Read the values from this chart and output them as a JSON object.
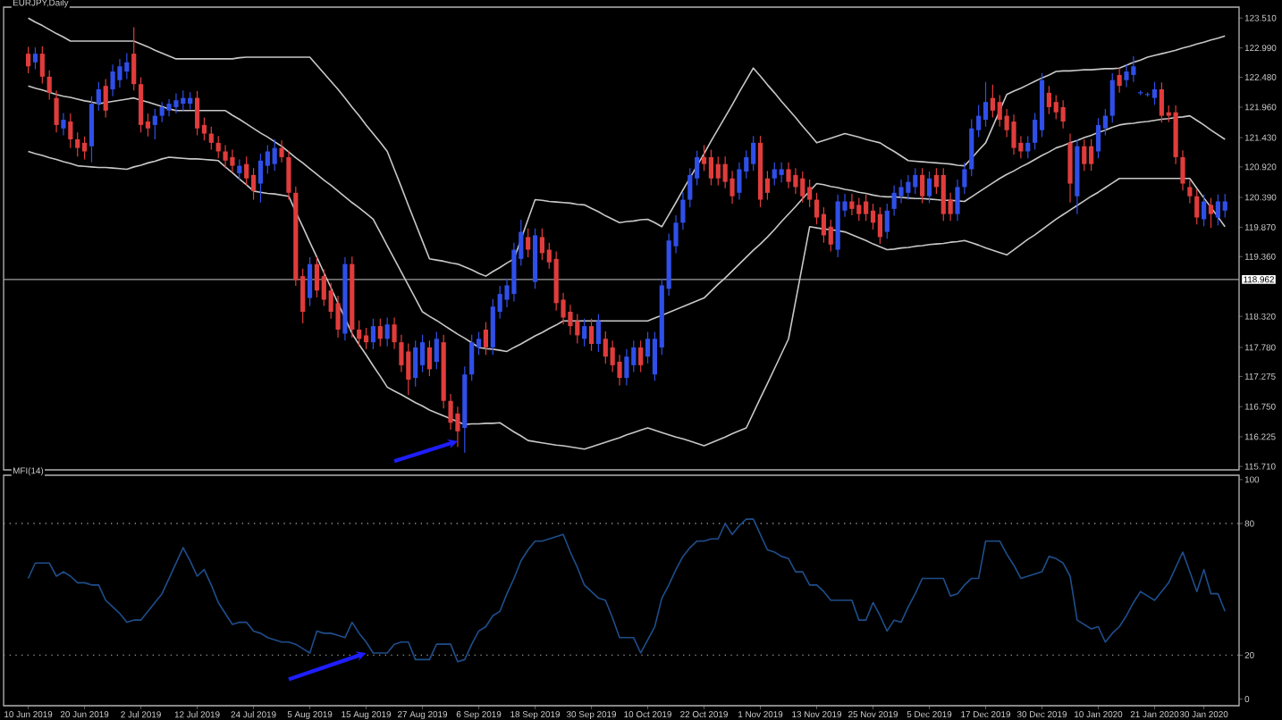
{
  "chart_data": [
    {
      "type": "candlestick",
      "title": "EURJPY,Daily",
      "categories": [
        null,
        null,
        null,
        null,
        null,
        null,
        null,
        null,
        null,
        null,
        null,
        null,
        null,
        null,
        null,
        null,
        null,
        null,
        null,
        null,
        null,
        null,
        null,
        null,
        null,
        null,
        null,
        null,
        null,
        null,
        null,
        null,
        null,
        null,
        null,
        null,
        null,
        null,
        null,
        null,
        null,
        null,
        null,
        null,
        null,
        null,
        null,
        null,
        null,
        null,
        null,
        null,
        null,
        null,
        null,
        null,
        null,
        null,
        null,
        null,
        null,
        null,
        null,
        null,
        null,
        null,
        null,
        null,
        null,
        null,
        null,
        null,
        null,
        null,
        null,
        null,
        null,
        null,
        null,
        null,
        null,
        null,
        null,
        null,
        null,
        null,
        null,
        null,
        null,
        null,
        null,
        null,
        null,
        null,
        null,
        null,
        null,
        null,
        null,
        null,
        null,
        null,
        null,
        null,
        null,
        null,
        null,
        null,
        null,
        null,
        null,
        null,
        null,
        null,
        null,
        null,
        null,
        null,
        null,
        null,
        null,
        null,
        null,
        null,
        null,
        null,
        null,
        null,
        null,
        null,
        null,
        null,
        null,
        null,
        null,
        null,
        null,
        null,
        null,
        null,
        null,
        null,
        null,
        null,
        null,
        null,
        null,
        null,
        null,
        null,
        null,
        null,
        null,
        null,
        null,
        null,
        null,
        null,
        null,
        null,
        null,
        null,
        null,
        null,
        null,
        null,
        null,
        null,
        null,
        null,
        null
      ],
      "ohlc": [
        [
          122.89,
          123.01,
          122.55,
          122.67
        ],
        [
          122.74,
          123.0,
          122.62,
          122.89
        ],
        [
          122.89,
          123.02,
          122.37,
          122.49
        ],
        [
          122.49,
          122.6,
          122.09,
          122.21
        ],
        [
          122.12,
          122.25,
          121.52,
          121.65
        ],
        [
          121.59,
          121.86,
          121.47,
          121.74
        ],
        [
          121.71,
          121.85,
          121.25,
          121.4
        ],
        [
          121.4,
          121.52,
          121.1,
          121.25
        ],
        [
          121.34,
          121.45,
          121.05,
          121.19
        ],
        [
          121.28,
          122.15,
          121.0,
          122.02
        ],
        [
          122.02,
          122.4,
          121.9,
          122.27
        ],
        [
          122.33,
          122.45,
          121.78,
          121.9
        ],
        [
          122.27,
          122.7,
          122.15,
          122.58
        ],
        [
          122.43,
          122.8,
          122.3,
          122.67
        ],
        [
          122.58,
          122.9,
          122.45,
          122.74
        ],
        [
          122.89,
          123.35,
          122.25,
          122.36
        ],
        [
          122.36,
          122.48,
          121.52,
          121.65
        ],
        [
          121.71,
          121.85,
          121.45,
          121.59
        ],
        [
          121.65,
          121.93,
          121.4,
          121.81
        ],
        [
          121.81,
          122.05,
          121.7,
          121.96
        ],
        [
          121.9,
          122.1,
          121.8,
          122.02
        ],
        [
          121.96,
          122.2,
          121.85,
          122.08
        ],
        [
          122.02,
          122.25,
          121.9,
          122.12
        ],
        [
          122.02,
          122.22,
          121.92,
          122.12
        ],
        [
          122.12,
          122.24,
          121.47,
          121.59
        ],
        [
          121.65,
          121.78,
          121.38,
          121.5
        ],
        [
          121.5,
          121.62,
          121.22,
          121.34
        ],
        [
          121.34,
          121.46,
          121.07,
          121.19
        ],
        [
          121.19,
          121.3,
          120.9,
          121.03
        ],
        [
          121.09,
          121.22,
          120.82,
          120.94
        ],
        [
          120.81,
          121.05,
          120.7,
          120.94
        ],
        [
          120.97,
          121.1,
          120.6,
          120.72
        ],
        [
          120.78,
          120.9,
          120.35,
          120.5
        ],
        [
          120.63,
          121.15,
          120.3,
          121.03
        ],
        [
          120.94,
          121.3,
          120.8,
          121.19
        ],
        [
          120.97,
          121.4,
          120.85,
          121.25
        ],
        [
          121.25,
          121.38,
          121.0,
          121.09
        ],
        [
          121.09,
          121.2,
          120.35,
          120.47
        ],
        [
          120.47,
          120.58,
          118.85,
          118.95
        ],
        [
          119.02,
          119.15,
          118.2,
          118.4
        ],
        [
          118.64,
          119.35,
          118.5,
          119.23
        ],
        [
          119.23,
          119.35,
          118.65,
          118.77
        ],
        [
          119.02,
          119.14,
          118.5,
          118.61
        ],
        [
          118.77,
          118.9,
          118.28,
          118.4
        ],
        [
          118.55,
          118.68,
          117.95,
          118.09
        ],
        [
          118.02,
          119.35,
          117.9,
          119.23
        ],
        [
          119.23,
          119.36,
          117.95,
          118.09
        ],
        [
          118.09,
          118.25,
          117.8,
          117.93
        ],
        [
          117.99,
          118.12,
          117.75,
          117.87
        ],
        [
          117.87,
          118.28,
          117.75,
          118.15
        ],
        [
          118.15,
          118.28,
          117.8,
          117.93
        ],
        [
          117.93,
          118.3,
          117.8,
          118.18
        ],
        [
          118.18,
          118.3,
          117.75,
          117.87
        ],
        [
          117.87,
          118.0,
          117.35,
          117.47
        ],
        [
          117.71,
          117.85,
          116.95,
          117.22
        ],
        [
          117.25,
          117.9,
          117.1,
          117.78
        ],
        [
          117.47,
          118.0,
          117.35,
          117.87
        ],
        [
          117.78,
          117.9,
          117.28,
          117.4
        ],
        [
          117.53,
          118.05,
          117.4,
          117.93
        ],
        [
          117.87,
          118.0,
          116.72,
          116.85
        ],
        [
          116.85,
          116.97,
          116.35,
          116.47
        ],
        [
          116.63,
          116.75,
          116.05,
          116.32
        ],
        [
          116.38,
          117.45,
          115.95,
          117.31
        ],
        [
          117.31,
          118.0,
          117.2,
          117.87
        ],
        [
          117.78,
          118.05,
          117.65,
          117.93
        ],
        [
          118.09,
          118.22,
          117.65,
          117.78
        ],
        [
          117.78,
          118.62,
          117.65,
          118.49
        ],
        [
          118.4,
          118.85,
          118.28,
          118.71
        ],
        [
          118.61,
          118.98,
          118.48,
          118.86
        ],
        [
          118.71,
          119.6,
          118.58,
          119.48
        ],
        [
          119.32,
          120.0,
          119.2,
          119.79
        ],
        [
          119.7,
          119.85,
          119.35,
          119.48
        ],
        [
          118.92,
          119.85,
          118.8,
          119.73
        ],
        [
          119.7,
          119.85,
          119.3,
          119.42
        ],
        [
          119.48,
          119.6,
          119.15,
          119.26
        ],
        [
          119.32,
          119.45,
          118.42,
          118.55
        ],
        [
          118.61,
          118.73,
          118.18,
          118.3
        ],
        [
          118.4,
          118.52,
          118.0,
          118.15
        ],
        [
          118.24,
          118.36,
          117.85,
          117.99
        ],
        [
          117.93,
          118.28,
          117.8,
          118.15
        ],
        [
          118.15,
          118.28,
          117.72,
          117.84
        ],
        [
          117.84,
          118.36,
          117.7,
          118.24
        ],
        [
          117.93,
          118.06,
          117.5,
          117.62
        ],
        [
          117.78,
          117.9,
          117.35,
          117.47
        ],
        [
          117.53,
          117.65,
          117.12,
          117.25
        ],
        [
          117.25,
          117.75,
          117.12,
          117.62
        ],
        [
          117.47,
          117.9,
          117.35,
          117.78
        ],
        [
          117.78,
          117.9,
          117.35,
          117.47
        ],
        [
          117.62,
          118.05,
          117.5,
          117.93
        ],
        [
          117.31,
          118.05,
          117.2,
          117.93
        ],
        [
          117.78,
          118.98,
          117.65,
          118.86
        ],
        [
          118.8,
          119.76,
          118.68,
          119.64
        ],
        [
          119.54,
          120.08,
          119.42,
          119.95
        ],
        [
          119.95,
          120.48,
          119.83,
          120.35
        ],
        [
          120.35,
          120.9,
          120.22,
          120.78
        ],
        [
          120.72,
          121.2,
          120.6,
          121.09
        ],
        [
          121.09,
          121.3,
          120.85,
          120.97
        ],
        [
          121.09,
          121.22,
          120.6,
          120.72
        ],
        [
          120.97,
          121.1,
          120.6,
          120.72
        ],
        [
          120.97,
          121.1,
          120.55,
          120.66
        ],
        [
          120.72,
          120.85,
          120.28,
          120.41
        ],
        [
          120.47,
          121.0,
          120.35,
          120.88
        ],
        [
          120.84,
          121.21,
          120.72,
          121.09
        ],
        [
          120.97,
          121.46,
          120.85,
          121.34
        ],
        [
          121.34,
          121.46,
          120.22,
          120.35
        ],
        [
          120.72,
          120.85,
          120.35,
          120.47
        ],
        [
          120.72,
          121.0,
          120.6,
          120.88
        ],
        [
          120.78,
          121.0,
          120.65,
          120.88
        ],
        [
          120.88,
          121.0,
          120.55,
          120.66
        ],
        [
          120.78,
          120.9,
          120.45,
          120.57
        ],
        [
          120.72,
          120.84,
          120.3,
          120.41
        ],
        [
          120.57,
          120.7,
          120.22,
          120.35
        ],
        [
          120.35,
          120.47,
          119.92,
          120.04
        ],
        [
          120.1,
          120.22,
          119.6,
          119.73
        ],
        [
          119.88,
          120.0,
          119.45,
          119.57
        ],
        [
          119.48,
          120.44,
          119.35,
          120.32
        ],
        [
          120.16,
          120.45,
          120.05,
          120.32
        ],
        [
          120.32,
          120.45,
          120.08,
          120.19
        ],
        [
          120.26,
          120.38,
          119.98,
          120.1
        ],
        [
          120.32,
          120.44,
          119.98,
          120.1
        ],
        [
          120.16,
          120.28,
          119.83,
          119.95
        ],
        [
          120.1,
          120.22,
          119.58,
          119.7
        ],
        [
          119.79,
          120.28,
          119.67,
          120.16
        ],
        [
          120.19,
          120.6,
          120.07,
          120.47
        ],
        [
          120.41,
          120.7,
          120.29,
          120.57
        ],
        [
          120.47,
          120.78,
          120.35,
          120.66
        ],
        [
          120.57,
          120.9,
          120.45,
          120.78
        ],
        [
          120.78,
          120.9,
          120.29,
          120.41
        ],
        [
          120.41,
          120.84,
          120.29,
          120.72
        ],
        [
          120.78,
          120.9,
          120.45,
          120.57
        ],
        [
          120.78,
          120.9,
          119.98,
          120.1
        ],
        [
          120.35,
          120.47,
          119.98,
          120.1
        ],
        [
          120.1,
          120.7,
          119.98,
          120.57
        ],
        [
          120.57,
          121.0,
          120.45,
          120.88
        ],
        [
          120.88,
          121.75,
          120.76,
          121.59
        ],
        [
          121.56,
          122.0,
          121.44,
          121.81
        ],
        [
          121.74,
          122.4,
          121.62,
          122.05
        ],
        [
          122.12,
          122.35,
          121.78,
          121.9
        ],
        [
          122.05,
          122.17,
          121.62,
          121.74
        ],
        [
          121.81,
          121.93,
          121.44,
          121.56
        ],
        [
          121.71,
          121.83,
          121.13,
          121.25
        ],
        [
          121.34,
          121.46,
          121.07,
          121.19
        ],
        [
          121.19,
          121.46,
          121.07,
          121.34
        ],
        [
          121.34,
          121.86,
          121.22,
          121.74
        ],
        [
          121.56,
          122.55,
          121.44,
          122.43
        ],
        [
          122.21,
          122.33,
          121.84,
          121.96
        ],
        [
          122.05,
          122.17,
          121.75,
          121.87
        ],
        [
          121.96,
          122.08,
          121.59,
          121.71
        ],
        [
          121.34,
          121.5,
          120.3,
          120.63
        ],
        [
          120.41,
          121.4,
          120.1,
          121.28
        ],
        [
          121.28,
          121.4,
          120.85,
          120.97
        ],
        [
          121.28,
          121.4,
          120.85,
          120.97
        ],
        [
          121.19,
          121.77,
          121.07,
          121.65
        ],
        [
          121.59,
          121.93,
          121.47,
          121.81
        ],
        [
          121.81,
          122.55,
          121.69,
          122.43
        ],
        [
          122.52,
          122.64,
          122.21,
          122.33
        ],
        [
          122.43,
          122.7,
          122.31,
          122.58
        ],
        [
          122.52,
          122.85,
          122.4,
          122.67
        ],
        [
          122.21,
          122.25,
          122.17,
          122.21
        ],
        [
          122.18,
          122.22,
          122.14,
          122.18
        ],
        [
          122.12,
          122.4,
          122.0,
          122.27
        ],
        [
          122.27,
          122.39,
          121.69,
          121.81
        ],
        [
          121.87,
          121.99,
          121.7,
          121.81
        ],
        [
          121.87,
          121.99,
          120.97,
          121.09
        ],
        [
          121.09,
          121.21,
          120.51,
          120.63
        ],
        [
          120.57,
          120.69,
          120.29,
          120.41
        ],
        [
          120.41,
          120.53,
          119.92,
          120.04
        ],
        [
          120.01,
          120.44,
          119.89,
          120.32
        ],
        [
          120.26,
          120.38,
          119.86,
          120.1
        ],
        [
          120.04,
          120.44,
          119.9,
          120.32
        ],
        [
          120.16,
          120.45,
          120.04,
          120.32
        ]
      ],
      "colors": [
        "#e03c3c",
        "#2f4fe8",
        "#e03c3c",
        "#e03c3c",
        "#e03c3c",
        "#2f4fe8",
        "#e03c3c",
        "#e03c3c",
        "#e03c3c",
        "#2f4fe8",
        "#2f4fe8",
        "#e03c3c",
        "#2f4fe8",
        "#2f4fe8",
        "#2f4fe8",
        "#e03c3c",
        "#e03c3c",
        "#e03c3c",
        "#2f4fe8",
        "#2f4fe8",
        "#2f4fe8",
        "#2f4fe8",
        "#2f4fe8",
        "#2f4fe8",
        "#e03c3c",
        "#e03c3c",
        "#e03c3c",
        "#e03c3c",
        "#e03c3c",
        "#e03c3c",
        "#2f4fe8",
        "#e03c3c",
        "#e03c3c",
        "#2f4fe8",
        "#2f4fe8",
        "#2f4fe8",
        "#e03c3c",
        "#e03c3c",
        "#e03c3c",
        "#e03c3c",
        "#2f4fe8",
        "#e03c3c",
        "#e03c3c",
        "#e03c3c",
        "#e03c3c",
        "#2f4fe8",
        "#e03c3c",
        "#e03c3c",
        "#e03c3c",
        "#2f4fe8",
        "#e03c3c",
        "#2f4fe8",
        "#e03c3c",
        "#e03c3c",
        "#e03c3c",
        "#2f4fe8",
        "#2f4fe8",
        "#e03c3c",
        "#2f4fe8",
        "#e03c3c",
        "#e03c3c",
        "#e03c3c",
        "#2f4fe8",
        "#2f4fe8",
        "#2f4fe8",
        "#e03c3c",
        "#2f4fe8",
        "#2f4fe8",
        "#2f4fe8",
        "#2f4fe8",
        "#2f4fe8",
        "#e03c3c",
        "#2f4fe8",
        "#e03c3c",
        "#e03c3c",
        "#e03c3c",
        "#e03c3c",
        "#e03c3c",
        "#e03c3c",
        "#2f4fe8",
        "#e03c3c",
        "#2f4fe8",
        "#e03c3c",
        "#e03c3c",
        "#e03c3c",
        "#2f4fe8",
        "#2f4fe8",
        "#e03c3c",
        "#2f4fe8",
        "#2f4fe8",
        "#2f4fe8",
        "#2f4fe8",
        "#2f4fe8",
        "#2f4fe8",
        "#2f4fe8",
        "#2f4fe8",
        "#e03c3c",
        "#e03c3c",
        "#e03c3c",
        "#e03c3c",
        "#e03c3c",
        "#2f4fe8",
        "#2f4fe8",
        "#2f4fe8",
        "#e03c3c",
        "#e03c3c",
        "#2f4fe8",
        "#2f4fe8",
        "#e03c3c",
        "#e03c3c",
        "#e03c3c",
        "#e03c3c",
        "#e03c3c",
        "#e03c3c",
        "#e03c3c",
        "#2f4fe8",
        "#2f4fe8",
        "#e03c3c",
        "#e03c3c",
        "#e03c3c",
        "#e03c3c",
        "#e03c3c",
        "#2f4fe8",
        "#2f4fe8",
        "#2f4fe8",
        "#2f4fe8",
        "#2f4fe8",
        "#e03c3c",
        "#2f4fe8",
        "#e03c3c",
        "#e03c3c",
        "#e03c3c",
        "#2f4fe8",
        "#2f4fe8",
        "#2f4fe8",
        "#2f4fe8",
        "#2f4fe8",
        "#e03c3c",
        "#e03c3c",
        "#e03c3c",
        "#e03c3c",
        "#e03c3c",
        "#2f4fe8",
        "#2f4fe8",
        "#2f4fe8",
        "#e03c3c",
        "#e03c3c",
        "#e03c3c",
        "#e03c3c",
        "#2f4fe8",
        "#e03c3c",
        "#e03c3c",
        "#2f4fe8",
        "#2f4fe8",
        "#2f4fe8",
        "#e03c3c",
        "#2f4fe8",
        "#2f4fe8",
        "#2f4fe8",
        "#2f4fe8",
        "#2f4fe8",
        "#e03c3c",
        "#e03c3c",
        "#e03c3c",
        "#e03c3c",
        "#e03c3c",
        "#e03c3c",
        "#2f4fe8",
        "#e03c3c",
        "#2f4fe8",
        "#2f4fe8"
      ],
      "series": [
        {
          "type": "line",
          "color": "#c8c8c8",
          "values": [
            123.51,
            123.44,
            123.38,
            123.31,
            123.24,
            123.18,
            123.11,
            123.11,
            123.11,
            123.11,
            123.11,
            123.11,
            123.11,
            123.11,
            123.11,
            123.11,
            123.06,
            123.01,
            122.95,
            122.9,
            122.85,
            122.8,
            122.8,
            122.8,
            122.8,
            122.8,
            122.8,
            122.8,
            122.8,
            122.8,
            122.82,
            122.83,
            122.83,
            122.83,
            122.83,
            122.83,
            122.83,
            122.83,
            122.83,
            122.83,
            122.83,
            122.69,
            122.55,
            122.41,
            122.27,
            122.12,
            121.96,
            121.81,
            121.65,
            121.5,
            121.35,
            121.19,
            120.88,
            120.57,
            120.25,
            119.94,
            119.63,
            119.32,
            119.3,
            119.28,
            119.25,
            119.23,
            119.18,
            119.13,
            119.07,
            119.02,
            119.1,
            119.17,
            119.25,
            119.32,
            119.66,
            120.01,
            120.35,
            120.34,
            120.32,
            120.31,
            120.3,
            120.29,
            120.27,
            120.26,
            120.2,
            120.14,
            120.07,
            120.01,
            119.95,
            119.97,
            119.98,
            120.0,
            120.01,
            119.95,
            119.88,
            120.09,
            120.3,
            120.52,
            120.73,
            120.94,
            121.15,
            121.37,
            121.58,
            121.79,
            122.0,
            122.22,
            122.43,
            122.64,
            122.5,
            122.35,
            122.21,
            122.06,
            121.92,
            121.78,
            121.63,
            121.49,
            121.34,
            121.38,
            121.42,
            121.46,
            121.5,
            121.47,
            121.44,
            121.4,
            121.37,
            121.34,
            121.26,
            121.19,
            121.11,
            121.03,
            121.02,
            121.01,
            121.0,
            120.99,
            120.98,
            120.97,
            120.95,
            120.94,
            121.07,
            121.21,
            121.34,
            121.62,
            121.9,
            122.18,
            122.24,
            122.29,
            122.35,
            122.41,
            122.47,
            122.52,
            122.58,
            122.59,
            122.59,
            122.6,
            122.61,
            122.61,
            122.62,
            122.63,
            122.63,
            122.64,
            122.69,
            122.74,
            122.78,
            122.83,
            122.86,
            122.89,
            122.92,
            122.95,
            122.99,
            123.02,
            123.06,
            123.09,
            123.13,
            123.16,
            123.2
          ]
        },
        {
          "type": "line",
          "color": "#c8c8c8",
          "values": [
            122.33,
            122.29,
            122.26,
            122.22,
            122.18,
            122.15,
            122.13,
            122.1,
            122.07,
            122.05,
            122.02,
            122.04,
            122.06,
            122.08,
            122.1,
            122.12,
            122.08,
            122.05,
            122.01,
            121.97,
            121.93,
            121.9,
            121.9,
            121.9,
            121.9,
            121.9,
            121.9,
            121.9,
            121.9,
            121.82,
            121.75,
            121.67,
            121.59,
            121.51,
            121.44,
            121.36,
            121.28,
            121.18,
            121.08,
            120.99,
            120.89,
            120.79,
            120.69,
            120.6,
            120.5,
            120.4,
            120.3,
            120.21,
            120.11,
            120.01,
            119.78,
            119.55,
            119.32,
            119.09,
            118.86,
            118.63,
            118.4,
            118.32,
            118.25,
            118.17,
            118.09,
            118.01,
            117.94,
            117.86,
            117.78,
            117.76,
            117.75,
            117.73,
            117.71,
            117.78,
            117.84,
            117.91,
            117.98,
            118.04,
            118.11,
            118.17,
            118.24,
            118.24,
            118.24,
            118.24,
            118.24,
            118.24,
            118.24,
            118.24,
            118.24,
            118.24,
            118.24,
            118.24,
            118.24,
            118.29,
            118.34,
            118.39,
            118.44,
            118.49,
            118.54,
            118.59,
            118.64,
            118.76,
            118.88,
            118.99,
            119.11,
            119.23,
            119.35,
            119.47,
            119.58,
            119.7,
            119.83,
            119.97,
            120.1,
            120.23,
            120.37,
            120.5,
            120.63,
            120.61,
            120.58,
            120.56,
            120.53,
            120.51,
            120.48,
            120.46,
            120.43,
            120.41,
            120.4,
            120.4,
            120.39,
            120.38,
            120.37,
            120.37,
            120.36,
            120.35,
            120.34,
            120.34,
            120.33,
            120.32,
            120.4,
            120.48,
            120.56,
            120.64,
            120.72,
            120.79,
            120.85,
            120.92,
            120.98,
            121.05,
            121.12,
            121.18,
            121.25,
            121.29,
            121.34,
            121.38,
            121.43,
            121.47,
            121.52,
            121.56,
            121.61,
            121.65,
            121.67,
            121.68,
            121.7,
            121.71,
            121.73,
            121.75,
            121.76,
            121.78,
            121.79,
            121.81,
            121.73,
            121.65,
            121.56,
            121.48,
            121.4
          ]
        },
        {
          "type": "line",
          "color": "#c8c8c8",
          "values": [
            121.19,
            121.15,
            121.12,
            121.08,
            121.05,
            121.01,
            120.98,
            120.94,
            120.93,
            120.92,
            120.91,
            120.91,
            120.9,
            120.89,
            120.88,
            120.92,
            120.95,
            120.99,
            121.02,
            121.06,
            121.09,
            121.08,
            121.07,
            121.06,
            121.06,
            121.05,
            121.04,
            121.03,
            120.92,
            120.82,
            120.71,
            120.61,
            120.5,
            120.48,
            120.46,
            120.45,
            120.43,
            120.41,
            120.14,
            119.88,
            119.61,
            119.35,
            119.08,
            118.82,
            118.55,
            118.29,
            118.02,
            117.83,
            117.65,
            117.46,
            117.28,
            117.09,
            117.02,
            116.96,
            116.89,
            116.82,
            116.76,
            116.69,
            116.64,
            116.59,
            116.54,
            116.49,
            116.44,
            116.45,
            116.45,
            116.46,
            116.46,
            116.47,
            116.39,
            116.31,
            116.24,
            116.16,
            116.14,
            116.12,
            116.1,
            116.08,
            116.07,
            116.05,
            116.03,
            116.01,
            116.05,
            116.09,
            116.13,
            116.17,
            116.21,
            116.26,
            116.3,
            116.34,
            116.38,
            116.34,
            116.3,
            116.26,
            116.22,
            116.19,
            116.15,
            116.11,
            116.07,
            116.12,
            116.17,
            116.22,
            116.28,
            116.33,
            116.38,
            116.64,
            116.9,
            117.15,
            117.41,
            117.67,
            117.93,
            118.58,
            119.23,
            119.88,
            119.86,
            119.84,
            119.83,
            119.81,
            119.79,
            119.74,
            119.69,
            119.64,
            119.58,
            119.53,
            119.48,
            119.49,
            119.51,
            119.52,
            119.54,
            119.55,
            119.57,
            119.58,
            119.59,
            119.61,
            119.62,
            119.64,
            119.6,
            119.56,
            119.51,
            119.47,
            119.43,
            119.39,
            119.48,
            119.57,
            119.66,
            119.74,
            119.83,
            119.92,
            120.01,
            120.09,
            120.17,
            120.25,
            120.33,
            120.41,
            120.48,
            120.56,
            120.64,
            120.72,
            120.72,
            120.72,
            120.72,
            120.72,
            120.72,
            120.72,
            120.72,
            120.72,
            120.72,
            120.72,
            120.55,
            120.38,
            120.22,
            120.05,
            119.88
          ]
        }
      ],
      "ylim": [
        115.65,
        123.7
      ],
      "yticks": [
        {
          "value": 115.71,
          "label": "115.710"
        },
        {
          "value": 116.225,
          "label": "116.225"
        },
        {
          "value": 116.75,
          "label": "116.750"
        },
        {
          "value": 117.275,
          "label": "117.275"
        },
        {
          "value": 117.78,
          "label": "117.780"
        },
        {
          "value": 118.32,
          "label": "118.320"
        },
        {
          "value": 119.36,
          "label": "119.360"
        },
        {
          "value": 119.87,
          "label": "119.870"
        },
        {
          "value": 120.39,
          "label": "120.390"
        },
        {
          "value": 120.92,
          "label": "120.920"
        },
        {
          "value": 121.43,
          "label": "121.430"
        },
        {
          "value": 121.96,
          "label": "121.960"
        },
        {
          "value": 122.48,
          "label": "122.480"
        },
        {
          "value": 122.99,
          "label": "122.990"
        },
        {
          "value": 123.51,
          "label": "123.510"
        }
      ],
      "tick_labels": "y",
      "ref_lines": [
        {
          "axis": "y",
          "value": 118.962,
          "label": "118.962",
          "color": "#a0a0a0"
        }
      ]
    },
    {
      "type": "line",
      "title": "MFI(14)",
      "categories": [
        "10 Jun 2019",
        null,
        null,
        null,
        null,
        null,
        null,
        null,
        "20 Jun 2019",
        null,
        null,
        null,
        null,
        null,
        null,
        null,
        "2 Jul 2019",
        null,
        null,
        null,
        null,
        null,
        null,
        null,
        "12 Jul 2019",
        null,
        null,
        null,
        null,
        null,
        null,
        null,
        "24 Jul 2019",
        null,
        null,
        null,
        null,
        null,
        null,
        null,
        "5 Aug 2019",
        null,
        null,
        null,
        null,
        null,
        null,
        null,
        "15 Aug 2019",
        null,
        null,
        null,
        null,
        null,
        null,
        null,
        "27 Aug 2019",
        null,
        null,
        null,
        null,
        null,
        null,
        null,
        "6 Sep 2019",
        null,
        null,
        null,
        null,
        null,
        null,
        null,
        "18 Sep 2019",
        null,
        null,
        null,
        null,
        null,
        null,
        null,
        "30 Sep 2019",
        null,
        null,
        null,
        null,
        null,
        null,
        null,
        "10 Oct 2019",
        null,
        null,
        null,
        null,
        null,
        null,
        null,
        "22 Oct 2019",
        null,
        null,
        null,
        null,
        null,
        null,
        null,
        "1 Nov 2019",
        null,
        null,
        null,
        null,
        null,
        null,
        null,
        "13 Nov 2019",
        null,
        null,
        null,
        null,
        null,
        null,
        null,
        "25 Nov 2019",
        null,
        null,
        null,
        null,
        null,
        null,
        null,
        "5 Dec 2019",
        null,
        null,
        null,
        null,
        null,
        null,
        null,
        "17 Dec 2019",
        null,
        null,
        null,
        null,
        null,
        null,
        null,
        "30 Dec 2019",
        null,
        null,
        null,
        null,
        null,
        null,
        null,
        "10 Jan 2020",
        null,
        null,
        null,
        null,
        null,
        null,
        null,
        "21 Jan 2020",
        null,
        null,
        null,
        null,
        null,
        null,
        "30 Jan 2020",
        null,
        null,
        null
      ],
      "series": [
        {
          "color": "#1f4e8c",
          "values": [
            55,
            62,
            62,
            62,
            56,
            58,
            56,
            53,
            53,
            52,
            52,
            45,
            42,
            39,
            35,
            36,
            36,
            40,
            44,
            48,
            55,
            62,
            69,
            63,
            56,
            59,
            52,
            44,
            39,
            34,
            35,
            35,
            31,
            30,
            28,
            27,
            26,
            26,
            25,
            23,
            21,
            31,
            30,
            30,
            29,
            28,
            35,
            30,
            26,
            21,
            21,
            21,
            25,
            26,
            26,
            18,
            18,
            18,
            25,
            25,
            25,
            17,
            18,
            25,
            31,
            33,
            38,
            40,
            48,
            55,
            63,
            68,
            72,
            72,
            73,
            74,
            75,
            67,
            60,
            52,
            49,
            46,
            45,
            37,
            28,
            28,
            28,
            21,
            27,
            33,
            46,
            52,
            59,
            65,
            69,
            72,
            72,
            73,
            73,
            80,
            75,
            79,
            82,
            82,
            75,
            68,
            67,
            65,
            64,
            58,
            58,
            52,
            52,
            49,
            45,
            45,
            45,
            45,
            36,
            36,
            44,
            38,
            31,
            36,
            35,
            42,
            48,
            55,
            55,
            55,
            55,
            47,
            48,
            52,
            55,
            55,
            72,
            72,
            72,
            66,
            61,
            55,
            56,
            57,
            58,
            65,
            64,
            62,
            56,
            36,
            34,
            32,
            33,
            26,
            30,
            33,
            38,
            44,
            49,
            47,
            45,
            49,
            53,
            60,
            67,
            58,
            49,
            59,
            48,
            48,
            40
          ]
        }
      ],
      "ylim": [
        -3,
        102
      ],
      "yticks": [
        0,
        20,
        80,
        100
      ],
      "ref_lines": [
        {
          "axis": "y",
          "value": 80,
          "color": "#909090",
          "line_style": "dotted"
        },
        {
          "axis": "y",
          "value": 20,
          "color": "#909090",
          "line_style": "dotted"
        }
      ]
    }
  ]
}
